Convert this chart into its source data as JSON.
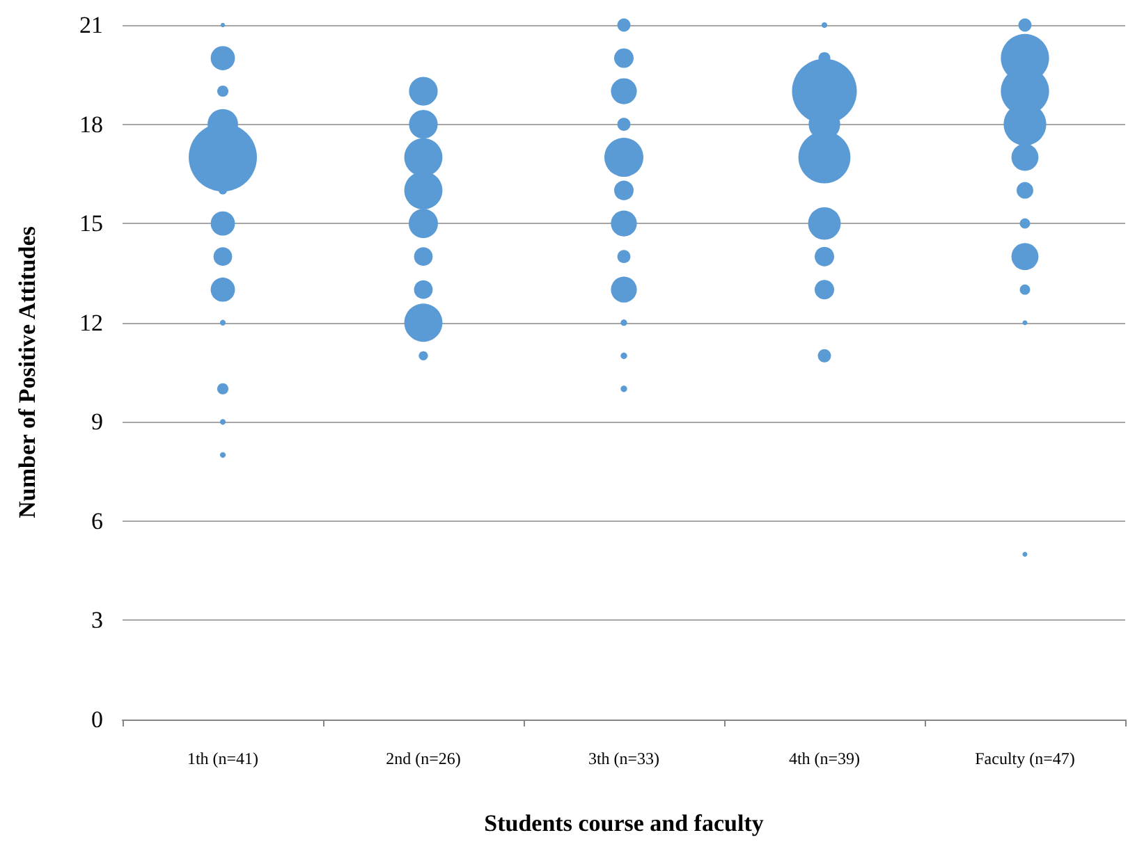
{
  "chart_data": {
    "type": "bubble",
    "xlabel": "Students course and faculty",
    "ylabel": "Number of Positive Attitudes",
    "categories": [
      "1th (n=41)",
      "2nd (n=26)",
      "3th (n=33)",
      "4th (n=39)",
      "Faculty (n=47)"
    ],
    "ylim": [
      0,
      21
    ],
    "yticks": [
      0,
      3,
      6,
      9,
      12,
      15,
      18,
      21
    ],
    "grid": "y",
    "legend": false,
    "marker": "circle",
    "series": [
      {
        "color": "#5b9bd5",
        "x": [
          "1th (n=41)",
          "1th (n=41)",
          "1th (n=41)",
          "1th (n=41)",
          "1th (n=41)",
          "1th (n=41)",
          "1th (n=41)",
          "1th (n=41)",
          "1th (n=41)",
          "1th (n=41)",
          "1th (n=41)",
          "1th (n=41)",
          "1th (n=41)"
        ],
        "values": [
          21,
          20,
          19,
          18,
          17,
          16,
          15,
          14,
          13,
          12,
          10,
          9,
          8
        ],
        "sizes": [
          0.004,
          0.126,
          0.027,
          0.2,
          1,
          0.015,
          0.126,
          0.075,
          0.126,
          0.007,
          0.027,
          0.007,
          0.007
        ]
      },
      {
        "color": "#5b9bd5",
        "x": [
          "2nd (n=26)",
          "2nd (n=26)",
          "2nd (n=26)",
          "2nd (n=26)",
          "2nd (n=26)",
          "2nd (n=26)",
          "2nd (n=26)",
          "2nd (n=26)",
          "2nd (n=26)"
        ],
        "values": [
          19,
          18,
          17,
          16,
          15,
          14,
          13,
          12,
          11
        ],
        "sizes": [
          0.177,
          0.177,
          0.313,
          0.313,
          0.184,
          0.075,
          0.075,
          0.313,
          0.018
        ]
      },
      {
        "color": "#5b9bd5",
        "x": [
          "3th (n=33)",
          "3th (n=33)",
          "3th (n=33)",
          "3th (n=33)",
          "3th (n=33)",
          "3th (n=33)",
          "3th (n=33)",
          "3th (n=33)",
          "3th (n=33)",
          "3th (n=33)",
          "3th (n=33)",
          "3th (n=33)"
        ],
        "values": [
          21,
          20,
          19,
          18,
          17,
          16,
          15,
          14,
          13,
          12,
          11,
          10
        ],
        "sizes": [
          0.037,
          0.082,
          0.144,
          0.037,
          0.327,
          0.082,
          0.144,
          0.037,
          0.144,
          0.009,
          0.009,
          0.009
        ]
      },
      {
        "color": "#5b9bd5",
        "x": [
          "4th (n=39)",
          "4th (n=39)",
          "4th (n=39)",
          "4th (n=39)",
          "4th (n=39)",
          "4th (n=39)",
          "4th (n=39)",
          "4th (n=39)",
          "4th (n=39)"
        ],
        "values": [
          21,
          20,
          19,
          18,
          17,
          15,
          14,
          13,
          11
        ],
        "sizes": [
          0.007,
          0.031,
          0.904,
          0.213,
          0.583,
          0.228,
          0.082,
          0.082,
          0.037
        ]
      },
      {
        "color": "#5b9bd5",
        "x": [
          "Faculty (n=47)",
          "Faculty (n=47)",
          "Faculty (n=47)",
          "Faculty (n=47)",
          "Faculty (n=47)",
          "Faculty (n=47)",
          "Faculty (n=47)",
          "Faculty (n=47)",
          "Faculty (n=47)",
          "Faculty (n=47)",
          "Faculty (n=47)"
        ],
        "values": [
          21,
          20,
          19,
          18,
          17,
          16,
          15,
          14,
          13,
          12,
          5
        ],
        "sizes": [
          0.037,
          0.5,
          0.5,
          0.39,
          0.157,
          0.06,
          0.023,
          0.157,
          0.023,
          0.005,
          0.005
        ]
      }
    ]
  }
}
